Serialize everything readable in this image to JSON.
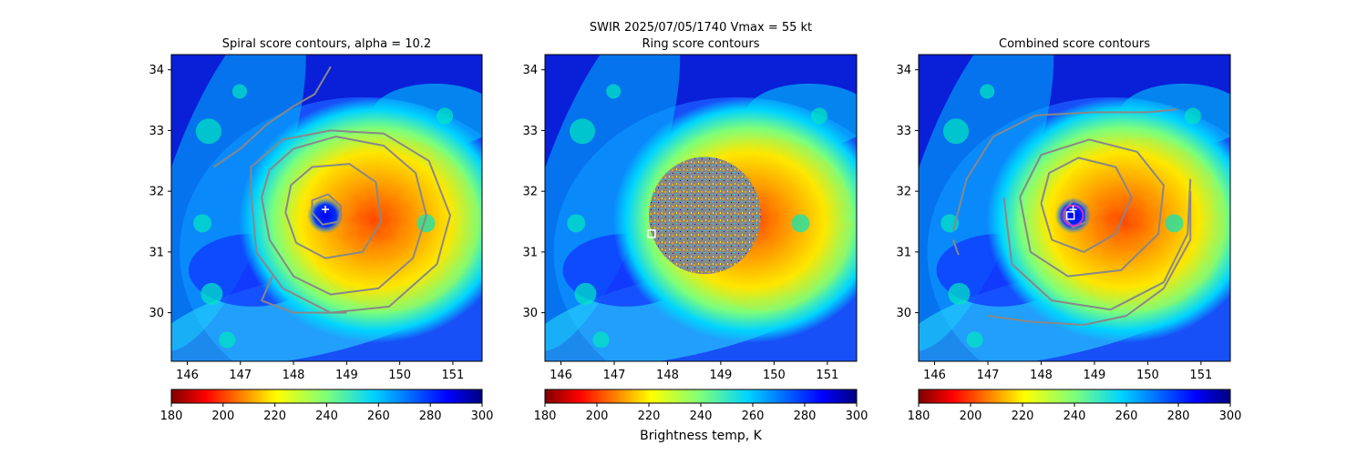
{
  "figure": {
    "suptitle_line1": "SWIR  2025/07/05/1740    Vmax = 55 kt",
    "colorbar_label": "Brightness temp, K"
  },
  "colors": {
    "contour": "#888888",
    "marker": "#ffffff",
    "eye_ring": "#cc33cc"
  },
  "chart_data": [
    {
      "type": "heatmap",
      "title": "Spiral score contours, alpha = 10.2",
      "x_ticks": [
        146,
        147,
        148,
        149,
        150,
        151
      ],
      "y_ticks": [
        30,
        31,
        32,
        33,
        34
      ],
      "xlim": [
        145.7,
        151.55
      ],
      "ylim": [
        29.2,
        34.25
      ],
      "center": {
        "lon": 148.6,
        "lat": 31.6
      },
      "plus_marker": {
        "lon": 148.6,
        "lat": 31.7
      },
      "colorbar": {
        "ticks": [
          180,
          200,
          220,
          240,
          260,
          280,
          300
        ],
        "range": [
          180,
          300
        ],
        "colormap": "jet_r"
      },
      "contours": [
        {
          "points": [
            [
              148.35,
              31.65
            ],
            [
              148.55,
              31.45
            ],
            [
              148.85,
              31.5
            ],
            [
              148.9,
              31.75
            ],
            [
              148.65,
              31.95
            ],
            [
              148.35,
              31.85
            ],
            [
              148.35,
              31.65
            ]
          ]
        },
        {
          "points": [
            [
              147.85,
              31.65
            ],
            [
              148.05,
              31.15
            ],
            [
              148.6,
              30.9
            ],
            [
              149.3,
              31.0
            ],
            [
              149.65,
              31.5
            ],
            [
              149.55,
              32.15
            ],
            [
              149.05,
              32.45
            ],
            [
              148.35,
              32.4
            ],
            [
              147.95,
              32.1
            ],
            [
              147.85,
              31.65
            ]
          ]
        },
        {
          "points": [
            [
              147.4,
              31.9
            ],
            [
              147.55,
              31.2
            ],
            [
              148.0,
              30.6
            ],
            [
              148.7,
              30.3
            ],
            [
              149.6,
              30.4
            ],
            [
              150.25,
              30.9
            ],
            [
              150.5,
              31.6
            ],
            [
              150.3,
              32.3
            ],
            [
              149.7,
              32.75
            ],
            [
              148.8,
              32.9
            ],
            [
              148.0,
              32.7
            ],
            [
              147.55,
              32.35
            ],
            [
              147.4,
              31.9
            ]
          ]
        },
        {
          "points": [
            [
              147.2,
              32.0
            ],
            [
              147.3,
              31.0
            ],
            [
              147.8,
              30.4
            ],
            [
              148.7,
              30.0
            ],
            [
              149.8,
              30.1
            ],
            [
              150.7,
              30.8
            ],
            [
              150.95,
              31.6
            ],
            [
              150.55,
              32.5
            ],
            [
              149.7,
              32.95
            ],
            [
              148.7,
              33.0
            ],
            [
              147.8,
              32.85
            ],
            [
              147.2,
              32.4
            ],
            [
              147.2,
              32.0
            ]
          ]
        },
        {
          "points": [
            [
              146.5,
              32.4
            ],
            [
              147.0,
              32.7
            ],
            [
              147.5,
              33.1
            ],
            [
              148.0,
              33.4
            ],
            [
              148.4,
              33.6
            ],
            [
              148.7,
              34.05
            ]
          ]
        },
        {
          "points": [
            [
              147.6,
              30.6
            ],
            [
              147.4,
              30.2
            ],
            [
              148.0,
              30.0
            ],
            [
              149.0,
              30.0
            ]
          ]
        }
      ]
    },
    {
      "type": "heatmap",
      "title": "Ring score contours",
      "x_ticks": [
        146,
        147,
        148,
        149,
        150,
        151
      ],
      "y_ticks": [
        30,
        31,
        32,
        33,
        34
      ],
      "xlim": [
        145.7,
        151.55
      ],
      "ylim": [
        29.2,
        34.25
      ],
      "center": {
        "lon": 148.6,
        "lat": 31.6
      },
      "square_marker": {
        "lon": 147.7,
        "lat": 31.3
      },
      "ring_blob": {
        "lon": 148.7,
        "lat": 31.6,
        "radius_deg": 1.05
      },
      "colorbar": {
        "ticks": [
          180,
          200,
          220,
          240,
          260,
          280,
          300
        ],
        "range": [
          180,
          300
        ],
        "colormap": "jet_r"
      },
      "contours": []
    },
    {
      "type": "heatmap",
      "title": "Combined score contours",
      "x_ticks": [
        146,
        147,
        148,
        149,
        150,
        151
      ],
      "y_ticks": [
        30,
        31,
        32,
        33,
        34
      ],
      "xlim": [
        145.7,
        151.55
      ],
      "ylim": [
        29.2,
        34.25
      ],
      "center": {
        "lon": 148.6,
        "lat": 31.6
      },
      "square_marker": {
        "lon": 148.55,
        "lat": 31.6
      },
      "plus_marker": {
        "lon": 148.6,
        "lat": 31.7
      },
      "colorbar": {
        "ticks": [
          180,
          200,
          220,
          240,
          260,
          280,
          300
        ],
        "range": [
          180,
          300
        ],
        "colormap": "jet_r"
      },
      "contours": [
        {
          "points": [
            [
              148.45,
              31.55
            ],
            [
              148.6,
              31.4
            ],
            [
              148.85,
              31.5
            ],
            [
              148.85,
              31.75
            ],
            [
              148.6,
              31.85
            ],
            [
              148.45,
              31.7
            ],
            [
              148.45,
              31.55
            ]
          ]
        },
        {
          "points": [
            [
              148.0,
              31.8
            ],
            [
              148.2,
              31.2
            ],
            [
              148.8,
              31.0
            ],
            [
              149.4,
              31.3
            ],
            [
              149.7,
              31.9
            ],
            [
              149.4,
              32.4
            ],
            [
              148.7,
              32.55
            ],
            [
              148.15,
              32.3
            ],
            [
              148.0,
              31.8
            ]
          ]
        },
        {
          "points": [
            [
              147.6,
              31.9
            ],
            [
              147.8,
              31.0
            ],
            [
              148.5,
              30.6
            ],
            [
              149.5,
              30.7
            ],
            [
              150.2,
              31.3
            ],
            [
              150.3,
              32.1
            ],
            [
              149.8,
              32.65
            ],
            [
              148.9,
              32.85
            ],
            [
              148.0,
              32.6
            ],
            [
              147.6,
              31.9
            ]
          ]
        },
        {
          "points": [
            [
              147.3,
              31.9
            ],
            [
              147.45,
              30.8
            ],
            [
              148.2,
              30.2
            ],
            [
              149.3,
              30.05
            ],
            [
              150.3,
              30.5
            ],
            [
              150.75,
              31.3
            ],
            [
              150.8,
              32.2
            ]
          ]
        },
        {
          "points": [
            [
              146.35,
              31.35
            ],
            [
              146.6,
              32.2
            ],
            [
              147.1,
              32.9
            ],
            [
              147.9,
              33.25
            ],
            [
              149.0,
              33.3
            ],
            [
              150.0,
              33.3
            ],
            [
              150.55,
              33.35
            ]
          ]
        },
        {
          "points": [
            [
              147.0,
              29.95
            ],
            [
              147.8,
              29.85
            ],
            [
              148.8,
              29.8
            ],
            [
              149.6,
              29.95
            ],
            [
              150.3,
              30.4
            ],
            [
              150.8,
              31.2
            ],
            [
              150.8,
              32.0
            ]
          ]
        },
        {
          "points": [
            [
              146.35,
              31.2
            ],
            [
              146.45,
              30.95
            ]
          ]
        }
      ]
    }
  ]
}
